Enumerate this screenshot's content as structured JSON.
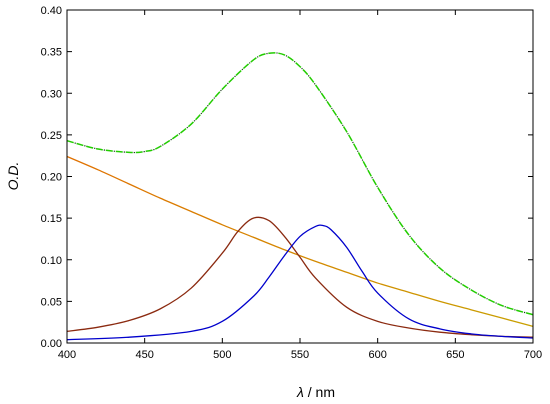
{
  "chart_data": {
    "type": "line",
    "xlabel": "λ / nm",
    "xlabel_symbol": "λ",
    "xlabel_unit": " / nm",
    "ylabel": "O.D.",
    "xlim": [
      400,
      700
    ],
    "ylim": [
      0.0,
      0.4
    ],
    "x_ticks": [
      400,
      450,
      500,
      550,
      600,
      650,
      700
    ],
    "x_tick_labels": [
      "400",
      "450",
      "500",
      "550",
      "600",
      "650",
      "700"
    ],
    "y_ticks": [
      0.0,
      0.05,
      0.1,
      0.15,
      0.2,
      0.25,
      0.3,
      0.35,
      0.4
    ],
    "y_tick_labels": [
      "0.00",
      "0.05",
      "0.10",
      "0.15",
      "0.20",
      "0.25",
      "0.30",
      "0.35",
      "0.40"
    ],
    "grid": false,
    "legend": "none",
    "series": [
      {
        "color": "#e07000",
        "color_end": "#c8a000",
        "style": "solid",
        "x": [
          400,
          420,
          440,
          460,
          480,
          500,
          520,
          540,
          560,
          580,
          600,
          620,
          640,
          660,
          680,
          700
        ],
        "y": [
          0.224,
          0.208,
          0.191,
          0.174,
          0.158,
          0.142,
          0.127,
          0.112,
          0.098,
          0.085,
          0.072,
          0.061,
          0.05,
          0.04,
          0.03,
          0.02
        ]
      },
      {
        "color": "#8b2a10",
        "style": "solid",
        "x": [
          400,
          420,
          440,
          460,
          480,
          500,
          510,
          520,
          530,
          540,
          550,
          560,
          580,
          600,
          620,
          640,
          660,
          680,
          700
        ],
        "y": [
          0.014,
          0.019,
          0.027,
          0.041,
          0.066,
          0.108,
          0.134,
          0.15,
          0.147,
          0.128,
          0.103,
          0.078,
          0.043,
          0.026,
          0.018,
          0.013,
          0.01,
          0.008,
          0.007
        ]
      },
      {
        "color": "#0000cc",
        "style": "solid",
        "x": [
          400,
          440,
          480,
          500,
          520,
          530,
          540,
          550,
          560,
          565,
          570,
          580,
          590,
          600,
          620,
          640,
          660,
          680,
          700
        ],
        "y": [
          0.004,
          0.007,
          0.014,
          0.026,
          0.056,
          0.079,
          0.105,
          0.128,
          0.14,
          0.141,
          0.136,
          0.115,
          0.086,
          0.06,
          0.029,
          0.017,
          0.011,
          0.008,
          0.006
        ]
      },
      {
        "color": "#22cc00",
        "style": "dash-dot",
        "x": [
          400,
          420,
          440,
          450,
          460,
          480,
          500,
          520,
          530,
          540,
          550,
          560,
          580,
          600,
          620,
          640,
          660,
          680,
          700
        ],
        "y": [
          0.243,
          0.233,
          0.229,
          0.23,
          0.236,
          0.263,
          0.305,
          0.34,
          0.348,
          0.346,
          0.332,
          0.31,
          0.254,
          0.187,
          0.13,
          0.09,
          0.064,
          0.045,
          0.034
        ]
      }
    ]
  }
}
